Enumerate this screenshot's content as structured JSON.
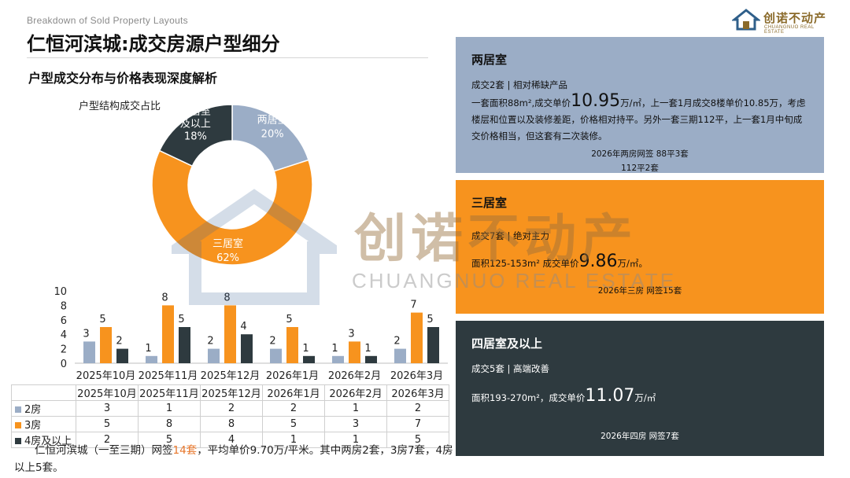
{
  "header": {
    "eyebrow": "Breakdown of Sold Property Layouts",
    "title": "仁恒河滨城:成交房源户型细分",
    "subtitle": "户型成交分布与价格表现深度解析"
  },
  "logo": {
    "text": "创诺不动产",
    "sub": "CHUANGNUO REAL ESTATE"
  },
  "watermark": {
    "text": "创诺不动产",
    "sub": "CHUANGNUO REAL ESTATE"
  },
  "colors": {
    "two_room": "#9badc6",
    "three_room": "#f7931e",
    "four_plus": "#2e3a3f",
    "highlight": "#e8762a"
  },
  "chart_data": [
    {
      "type": "pie",
      "title": "户型结构成交占比",
      "donut": true,
      "slices": [
        {
          "name": "两居室",
          "value": 20,
          "label": "20%",
          "color": "#9badc6"
        },
        {
          "name": "三居室",
          "value": 62,
          "label": "62%",
          "color": "#f7931e"
        },
        {
          "name": "四居室及以上",
          "value": 18,
          "label": "18%",
          "color": "#2e3a3f"
        }
      ]
    },
    {
      "type": "bar",
      "categories": [
        "2025年10月",
        "2025年11月",
        "2025年12月",
        "2026年1月",
        "2026年2月",
        "2026年3月"
      ],
      "series": [
        {
          "name": "2房",
          "values": [
            3,
            1,
            2,
            2,
            1,
            2
          ],
          "color": "#9badc6"
        },
        {
          "name": "3房",
          "values": [
            5,
            8,
            8,
            5,
            3,
            7
          ],
          "color": "#f7931e"
        },
        {
          "name": "4房及以上",
          "values": [
            2,
            5,
            4,
            1,
            1,
            5
          ],
          "color": "#2e3a3f"
        }
      ],
      "ylim": [
        0,
        10
      ],
      "yticks": [
        0,
        2,
        4,
        6,
        8,
        10
      ],
      "legend": "data-table"
    }
  ],
  "summary": {
    "p1": "仁恒河滨城（一至三期）网签",
    "count": "14套",
    "p2": "，平均单价9.70万/平米。其中两房2套，3房7套，4房以上5套。"
  },
  "cards": {
    "two": {
      "title": "两居室",
      "line1": "成交2套 | 相对稀缺产品",
      "l2a": "一套面积88m²,成交单价",
      "l2big": "10.95",
      "l2unit": "万/㎡",
      "l2b": "，上一套1月成交8楼单价10.85万，考虑楼层和位置以及装修差距，价格相对持平。另外一套三期112平，上一套1月中旬成交价格相当，但这套有二次装修。",
      "note1": "2026年两房网签 88平3套",
      "note2": "112平2套"
    },
    "three": {
      "title": "三居室",
      "line1": "成交7套 | 绝对主力",
      "l2a": "面积125-153m² 成交单价",
      "l2big": "9.86",
      "l2unit": "万/㎡。",
      "note1": "2026年三房 网签15套"
    },
    "four": {
      "title": "四居室及以上",
      "line1": "成交5套 | 高端改善",
      "l2a": "面积193-270m²，成交单价",
      "l2big": "11.07",
      "l2unit": "万/㎡",
      "note1": "2026年四房 网签7套"
    }
  }
}
